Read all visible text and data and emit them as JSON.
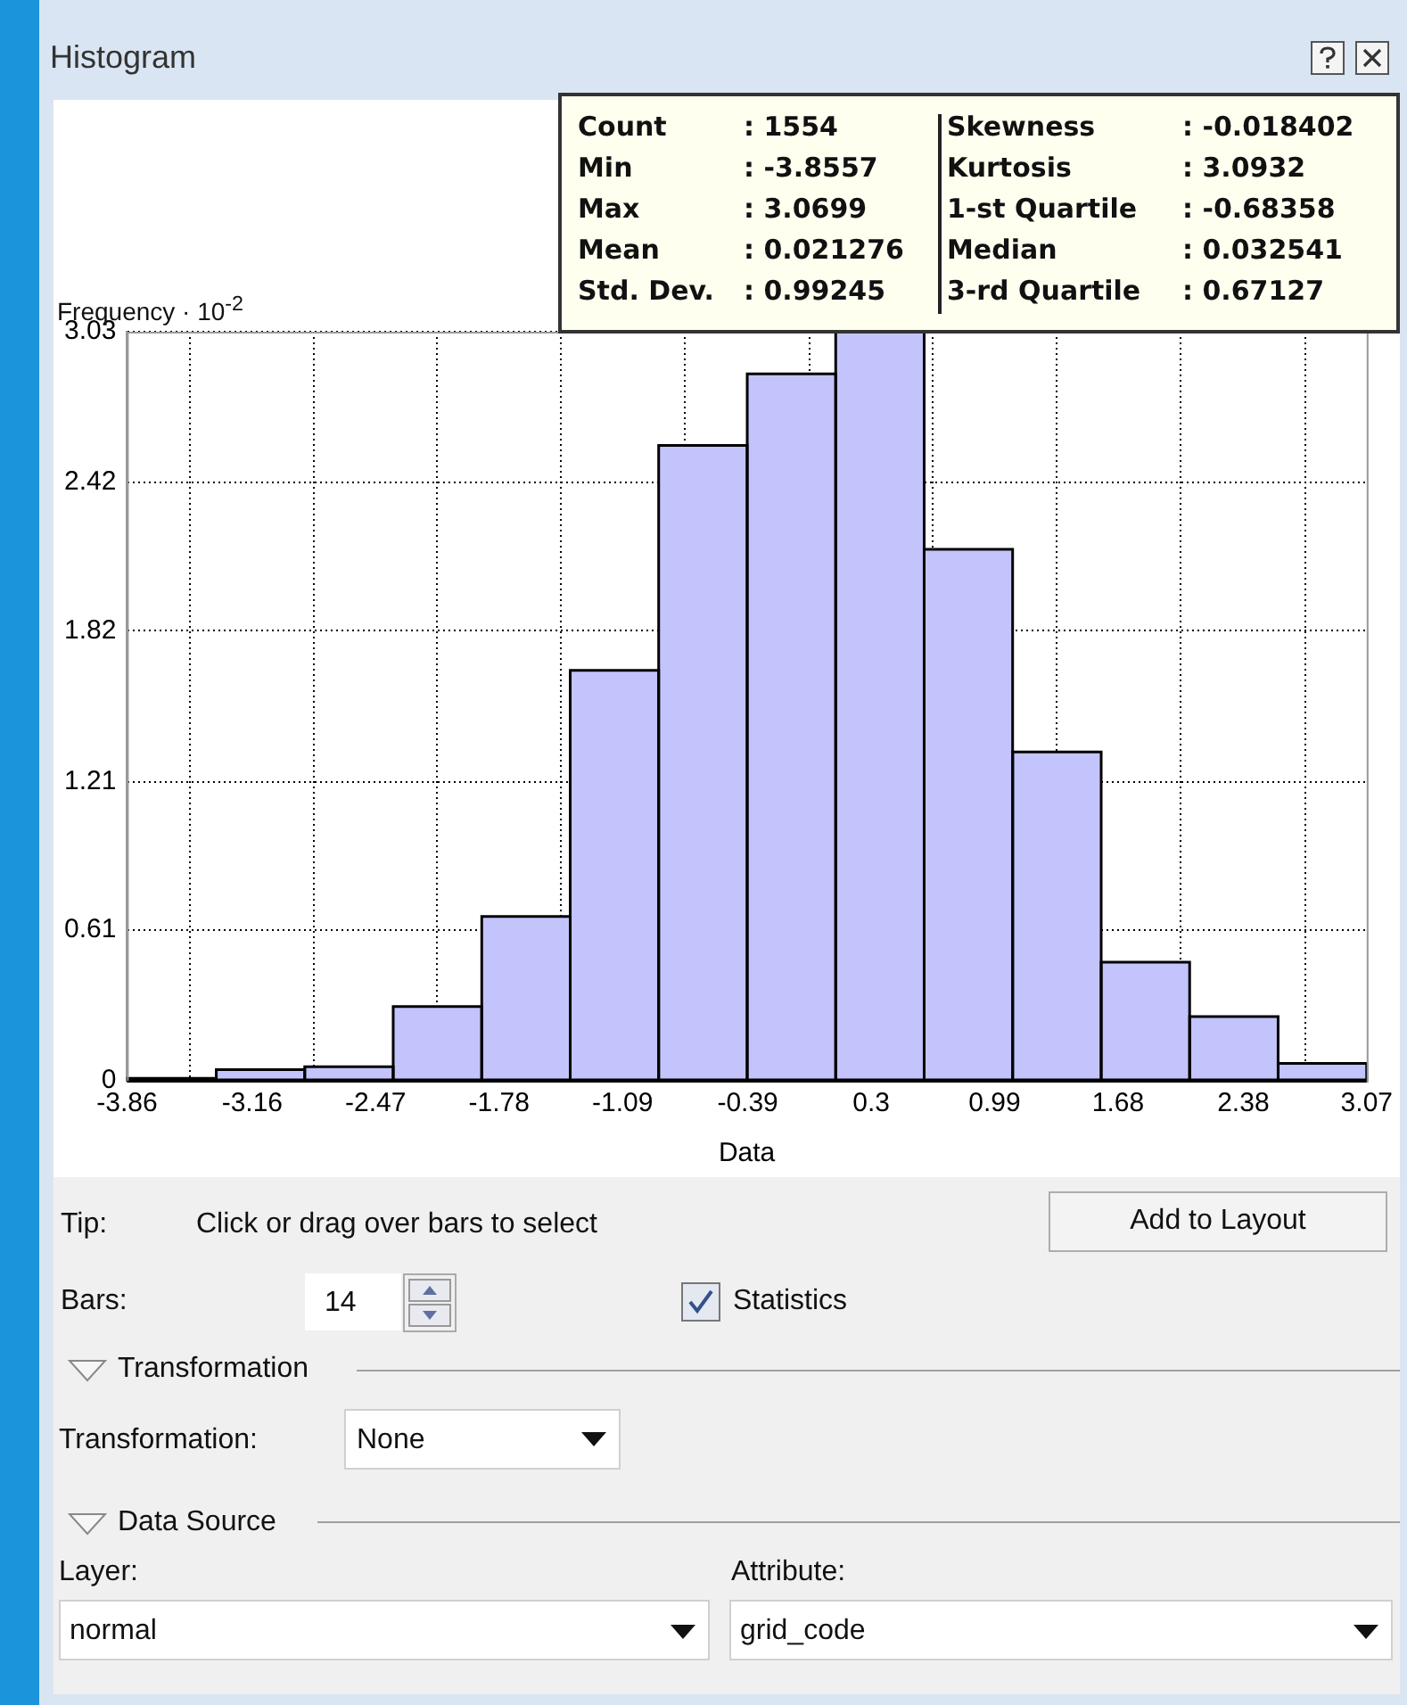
{
  "chart_data": {
    "type": "histogram",
    "title": "Histogram",
    "xlabel": "Data",
    "ylabel": "Frequency · 10$^{-2}$",
    "bins": [
      -3.856,
      -3.361,
      -2.866,
      -2.372,
      -1.877,
      -1.382,
      -0.888,
      -0.393,
      0.102,
      0.596,
      1.091,
      1.586,
      2.08,
      2.575,
      3.07
    ],
    "values": [
      0.01,
      0.045,
      0.057,
      0.3,
      0.665,
      1.66,
      2.57,
      2.86,
      3.03,
      2.15,
      1.33,
      0.48,
      0.26,
      0.07
    ],
    "color": "#c4c4fc",
    "xlim": [
      -3.86,
      3.07
    ],
    "xticks": [
      -3.86,
      -3.16,
      -2.47,
      -1.78,
      -1.09,
      -0.39,
      0.3,
      0.99,
      1.68,
      2.38,
      3.07
    ],
    "ylim": [
      0,
      3.03
    ],
    "yticks": [
      0,
      0.61,
      1.21,
      1.82,
      2.42,
      3.03
    ],
    "grid": true,
    "legend": false,
    "annotations": [
      "Count",
      ": 1554",
      "Min",
      ": -3.8557",
      "Max",
      ": 3.0699",
      "Mean",
      ": 0.021276",
      "Std. Dev.",
      ": 0.99245",
      "Skewness",
      ": -0.018402",
      "Kurtosis",
      ": 3.0932",
      "1-st Quartile",
      ": -0.68358",
      "Median",
      ": 0.032541",
      "3-rd Quartile",
      ": 0.67127",
      "Tip:",
      "Click or drag over bars to select",
      "Add to Layout",
      "Bars:",
      "14",
      "Statistics",
      "Transformation",
      "Transformation:",
      "None",
      "Data Source",
      "Layer:",
      "normal",
      "Attribute:",
      "grid_code"
    ]
  }
}
